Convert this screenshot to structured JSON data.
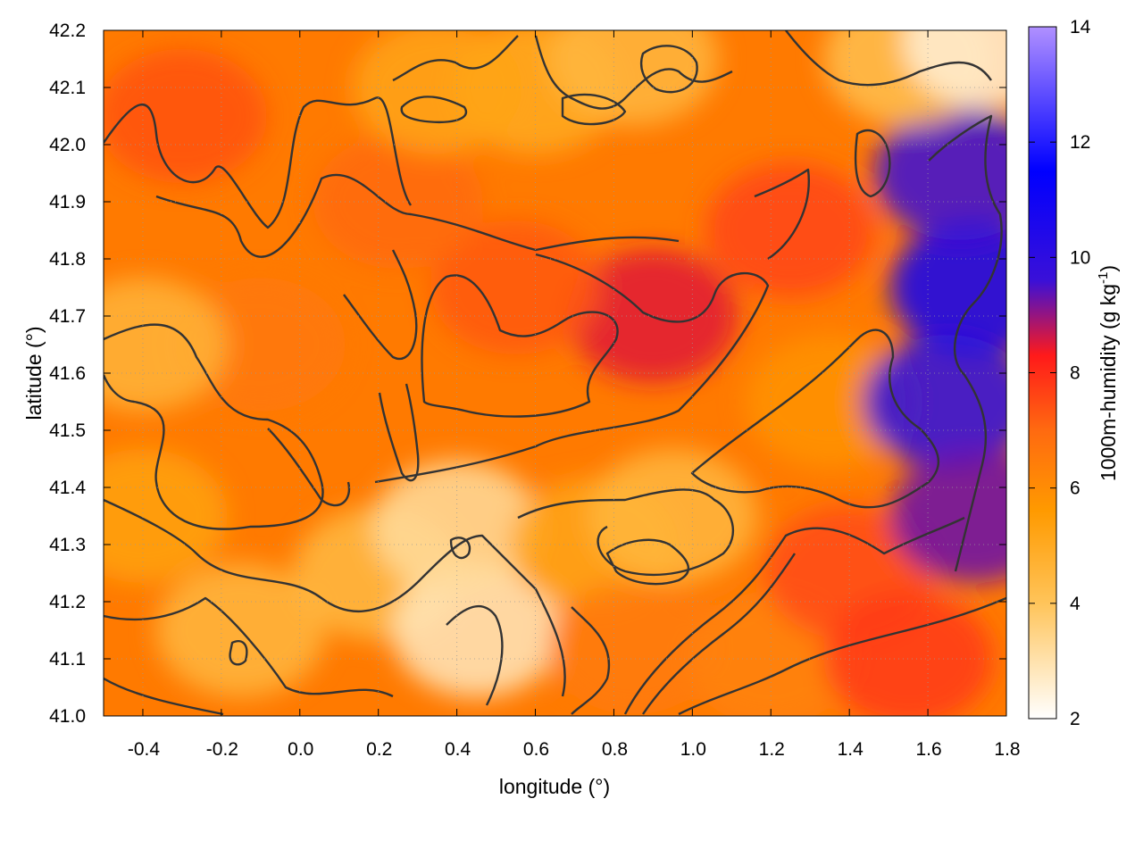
{
  "chart_data": {
    "type": "heatmap",
    "xlabel": "longitude (°)",
    "ylabel": "latitude (°)",
    "colorbar_label_main": "1000m-humidity (g kg",
    "colorbar_label_sup": "-1",
    "colorbar_label_end": ")",
    "xlim": [
      -0.5,
      1.8
    ],
    "ylim": [
      41.0,
      42.2
    ],
    "x_ticks": [
      -0.4,
      -0.2,
      0.0,
      0.2,
      0.4,
      0.6,
      0.8,
      1.0,
      1.2,
      1.4,
      1.6,
      1.8
    ],
    "x_tick_labels": [
      "-0.4",
      "-0.2",
      "0.0",
      "0.2",
      "0.4",
      "0.6",
      "0.8",
      "1.0",
      "1.2",
      "1.4",
      "1.6",
      "1.8"
    ],
    "y_ticks": [
      41.0,
      41.1,
      41.2,
      41.3,
      41.4,
      41.5,
      41.6,
      41.7,
      41.8,
      41.9,
      42.0,
      42.1,
      42.2
    ],
    "y_tick_labels": [
      "41.0",
      "41.1",
      "41.2",
      "41.3",
      "41.4",
      "41.5",
      "41.6",
      "41.7",
      "41.8",
      "41.9",
      "42.0",
      "42.1",
      "42.2"
    ],
    "colorbar": {
      "range": [
        2,
        14
      ],
      "ticks": [
        2,
        4,
        6,
        8,
        10,
        12,
        14
      ],
      "tick_labels": [
        "2",
        "4",
        "6",
        "8",
        "10",
        "12",
        "14"
      ],
      "colormap": [
        "#ffffff",
        "#ffc45a",
        "#ff9a00",
        "#ff6a10",
        "#ff1a1a",
        "#3a10d8",
        "#0000ff",
        "#b090ff"
      ]
    },
    "grid": "dotted",
    "features": [
      {
        "lon": 0.9,
        "lat": 41.7,
        "value": 8.5
      },
      {
        "lon": 0.55,
        "lat": 41.75,
        "value": 7.3
      },
      {
        "lon": 0.25,
        "lat": 41.9,
        "value": 7.0
      },
      {
        "lon": -0.3,
        "lat": 42.05,
        "value": 7.4
      },
      {
        "lon": -0.1,
        "lat": 41.65,
        "value": 6.6
      },
      {
        "lon": -0.4,
        "lat": 41.65,
        "value": 4.6
      },
      {
        "lon": -0.4,
        "lat": 41.35,
        "value": 5.3
      },
      {
        "lon": -0.15,
        "lat": 41.15,
        "value": 4.5
      },
      {
        "lon": 0.2,
        "lat": 41.25,
        "value": 4.4
      },
      {
        "lon": 0.45,
        "lat": 41.15,
        "value": 2.8
      },
      {
        "lon": 0.4,
        "lat": 41.33,
        "value": 3.2
      },
      {
        "lon": 0.75,
        "lat": 41.3,
        "value": 5.2
      },
      {
        "lon": 0.95,
        "lat": 41.35,
        "value": 4.5
      },
      {
        "lon": 0.85,
        "lat": 41.12,
        "value": 6.5
      },
      {
        "lon": 1.2,
        "lat": 41.1,
        "value": 6.3
      },
      {
        "lon": 1.35,
        "lat": 41.55,
        "value": 5.8
      },
      {
        "lon": 1.4,
        "lat": 41.25,
        "value": 7.5
      },
      {
        "lon": 1.55,
        "lat": 41.1,
        "value": 7.8
      },
      {
        "lon": 1.25,
        "lat": 41.85,
        "value": 7.6
      },
      {
        "lon": 1.72,
        "lat": 41.75,
        "value": 11.0
      },
      {
        "lon": 1.65,
        "lat": 41.55,
        "value": 10.2
      },
      {
        "lon": 1.72,
        "lat": 41.35,
        "value": 9.3
      },
      {
        "lon": 1.68,
        "lat": 41.95,
        "value": 9.6
      },
      {
        "lon": 0.6,
        "lat": 42.1,
        "value": 5.0
      },
      {
        "lon": 0.85,
        "lat": 42.15,
        "value": 4.5
      },
      {
        "lon": 0.35,
        "lat": 42.1,
        "value": 5.2
      },
      {
        "lon": 1.55,
        "lat": 42.15,
        "value": 4.2
      },
      {
        "lon": 1.75,
        "lat": 42.18,
        "value": 2.5
      }
    ]
  }
}
